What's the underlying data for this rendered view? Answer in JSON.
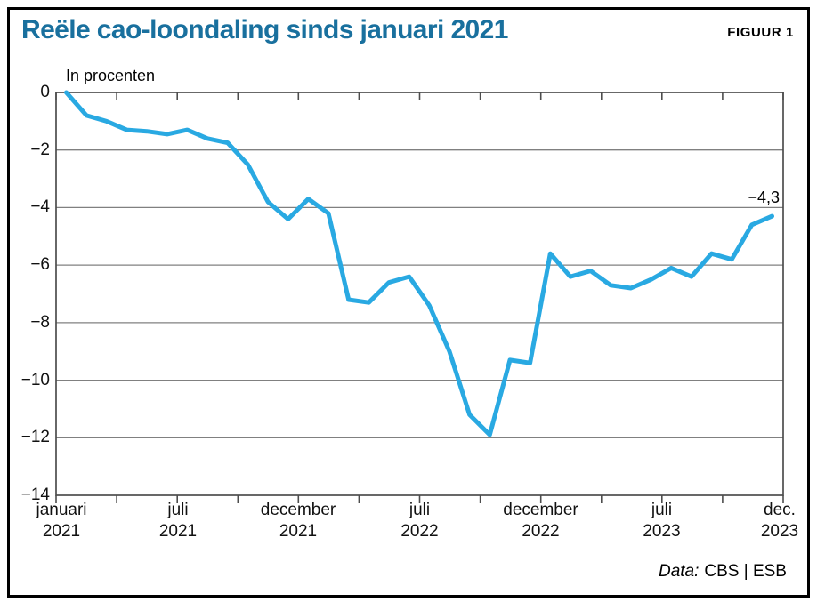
{
  "header": {
    "title": "Reële cao-loondaling sinds januari 2021",
    "figure_label": "FIGUUR 1"
  },
  "chart_data": {
    "type": "line",
    "title": "Reële cao-loondaling sinds januari 2021",
    "unit_label": "In procenten",
    "ylabel": "In procenten",
    "xlabel": "",
    "ylim": [
      -14,
      0
    ],
    "grid": true,
    "legend": "none",
    "line_color": "#29a9e2",
    "frame_color": "#4d4d4d",
    "grid_color": "#808080",
    "title_color": "#19709e",
    "x": [
      "2021-01",
      "2021-02",
      "2021-03",
      "2021-04",
      "2021-05",
      "2021-06",
      "2021-07",
      "2021-08",
      "2021-09",
      "2021-10",
      "2021-11",
      "2021-12",
      "2022-01",
      "2022-02",
      "2022-03",
      "2022-04",
      "2022-05",
      "2022-06",
      "2022-07",
      "2022-08",
      "2022-09",
      "2022-10",
      "2022-11",
      "2022-12",
      "2023-01",
      "2023-02",
      "2023-03",
      "2023-04",
      "2023-05",
      "2023-06",
      "2023-07",
      "2023-08",
      "2023-09",
      "2023-10",
      "2023-11",
      "2023-12"
    ],
    "values": [
      0.0,
      -0.8,
      -1.0,
      -1.3,
      -1.35,
      -1.45,
      -1.3,
      -1.6,
      -1.75,
      -2.5,
      -3.8,
      -4.4,
      -3.7,
      -4.2,
      -7.2,
      -7.3,
      -6.6,
      -6.4,
      -7.4,
      -9.0,
      -11.2,
      -11.9,
      -9.3,
      -9.4,
      -5.6,
      -6.4,
      -6.2,
      -6.7,
      -6.8,
      -6.5,
      -6.1,
      -6.4,
      -5.6,
      -5.8,
      -4.6,
      -4.3
    ],
    "ytick_labels": [
      "0",
      "−2",
      "−4",
      "−6",
      "−8",
      "−10",
      "−12",
      "−14"
    ],
    "xtick_labels": [
      {
        "month": "januari",
        "year": "2021"
      },
      {
        "month": "juli",
        "year": "2021"
      },
      {
        "month": "december",
        "year": "2021"
      },
      {
        "month": "juli",
        "year": "2022"
      },
      {
        "month": "december",
        "year": "2022"
      },
      {
        "month": "juli",
        "year": "2023"
      },
      {
        "month": "dec.",
        "year": "2023"
      }
    ],
    "end_annotation": "−4,3"
  },
  "footer": {
    "source_prefix": "Data:",
    "source_text": "CBS | ESB"
  }
}
